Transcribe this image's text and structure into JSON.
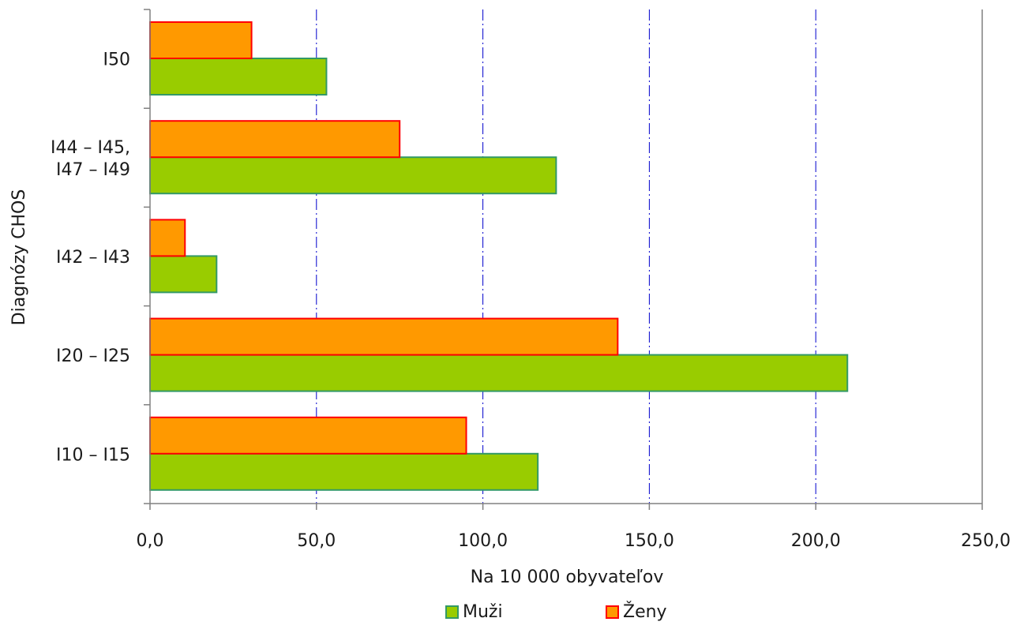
{
  "chart_data": {
    "type": "bar",
    "orientation": "horizontal",
    "categories": [
      "I10 – I15",
      "I20 – I25",
      "I42 – I43",
      "I44 – I45,\nI47 – I49",
      "I50"
    ],
    "series": [
      {
        "name": "Muži",
        "values": [
          116.5,
          209.5,
          20.0,
          122.0,
          53.0
        ],
        "color": "#99cc00",
        "border": "#339966"
      },
      {
        "name": "Ženy",
        "values": [
          95.0,
          140.5,
          10.5,
          75.0,
          30.5
        ],
        "color": "#ff9900",
        "border": "#ff0000"
      }
    ],
    "x_ticks": [
      "0,0",
      "50,0",
      "100,0",
      "150,0",
      "200,0",
      "250,0"
    ],
    "xlim": [
      0,
      250
    ],
    "xlabel": "Na 10 000 obyvateľov",
    "ylabel": "Diagnózy CHOS",
    "grid": {
      "x": true,
      "color": "#0000cc",
      "style": "dash-dot"
    },
    "legend": {
      "position": "bottom"
    }
  }
}
